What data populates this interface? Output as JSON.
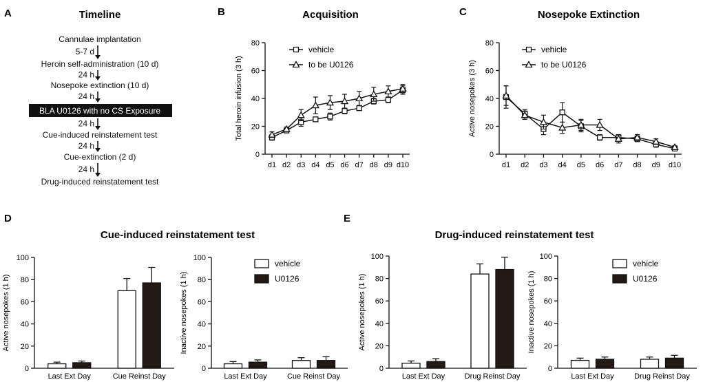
{
  "panel_labels": [
    "A",
    "B",
    "C",
    "D",
    "E"
  ],
  "timeline": {
    "title": "Timeline",
    "steps": [
      "Cannulae implantation",
      "Heroin self-administration (10 d)",
      "Nosepoke extinction (10 d)",
      "BLA U0126 with no CS Exposure",
      "Cue-induced reinstatement test",
      "Cue-extinction (2 d)",
      "Drug-induced reinstatement test"
    ],
    "intervals": [
      "5-7 d",
      "24 h",
      "24 h",
      "24 h",
      "24 h",
      "24 h"
    ],
    "highlight_step": 3
  },
  "section_titles": {
    "cue": "Cue-induced reinstatement test",
    "drug": "Drug-induced reinstatement test"
  },
  "colors": {
    "ink": "#111111",
    "vehicle_fill": "#ffffff",
    "u0126_fill": "#231a16"
  },
  "chart_data": [
    {
      "id": "B",
      "type": "line",
      "title": "Acquisition",
      "xlabel": "",
      "ylabel": "Total heroin infusion (3 h)",
      "categories": [
        "d1",
        "d2",
        "d3",
        "d4",
        "d5",
        "d6",
        "d7",
        "d8",
        "d9",
        "d10"
      ],
      "ylim": [
        0,
        80
      ],
      "yticks": [
        0,
        20,
        40,
        60,
        80
      ],
      "legend": "top-left",
      "series": [
        {
          "name": "vehicle",
          "marker": "square",
          "values": [
            12,
            17,
            23,
            25,
            27,
            31,
            33,
            38,
            39,
            46
          ],
          "errors": [
            2,
            1.5,
            3,
            1.5,
            2.5,
            2,
            1.5,
            2,
            2,
            3
          ]
        },
        {
          "name": "to be U0126",
          "marker": "triangle",
          "values": [
            14,
            18,
            28,
            35,
            37,
            38,
            40,
            43,
            45,
            47
          ],
          "errors": [
            2,
            1.5,
            4,
            6,
            5,
            5,
            5,
            5,
            4,
            3
          ]
        }
      ]
    },
    {
      "id": "C",
      "type": "line",
      "title": "Nosepoke Extinction",
      "xlabel": "",
      "ylabel": "Active nosepokes (3 h)",
      "categories": [
        "d1",
        "d2",
        "d3",
        "d4",
        "d5",
        "d6",
        "d7",
        "d8",
        "d9",
        "d10"
      ],
      "ylim": [
        0,
        80
      ],
      "yticks": [
        0,
        20,
        40,
        60,
        80
      ],
      "legend": "top-left",
      "series": [
        {
          "name": "vehicle",
          "marker": "square",
          "values": [
            41,
            29,
            18,
            30,
            20,
            12,
            12,
            11,
            7,
            4
          ],
          "errors": [
            8,
            3,
            4,
            7,
            4,
            2,
            2,
            2,
            2,
            1
          ]
        },
        {
          "name": "to be U0126",
          "marker": "triangle",
          "values": [
            42,
            28,
            23,
            19,
            21,
            21,
            11,
            12,
            9,
            5
          ],
          "errors": [
            7,
            3,
            5,
            4,
            4,
            4,
            3,
            2,
            2,
            1
          ]
        }
      ]
    },
    {
      "id": "D1",
      "type": "bar",
      "section": "Cue-induced reinstatement test",
      "xlabel": "",
      "ylabel": "Active nosepokes (1 h)",
      "categories": [
        "Last Ext Day",
        "Cue Reinst Day"
      ],
      "ylim": [
        0,
        100
      ],
      "yticks": [
        0,
        20,
        40,
        60,
        80,
        100
      ],
      "legend": "none",
      "series": [
        {
          "name": "vehicle",
          "values": [
            4,
            70
          ],
          "errors": [
            1.5,
            11
          ]
        },
        {
          "name": "U0126",
          "values": [
            5,
            77
          ],
          "errors": [
            1.5,
            14
          ]
        }
      ]
    },
    {
      "id": "D2",
      "type": "bar",
      "section": "Cue-induced reinstatement test",
      "xlabel": "",
      "ylabel": "Inactive nosepokes (1 h)",
      "categories": [
        "Last Ext Day",
        "Cue Reinst Day"
      ],
      "ylim": [
        0,
        100
      ],
      "yticks": [
        0,
        20,
        40,
        60,
        80,
        100
      ],
      "legend": "top-right",
      "series": [
        {
          "name": "vehicle",
          "values": [
            4,
            7
          ],
          "errors": [
            2,
            2.5
          ]
        },
        {
          "name": "U0126",
          "values": [
            5.5,
            7
          ],
          "errors": [
            2,
            3.5
          ]
        }
      ]
    },
    {
      "id": "E1",
      "type": "bar",
      "section": "Drug-induced reinstatement test",
      "xlabel": "",
      "ylabel": "Active nosepokes (1 h)",
      "categories": [
        "Last Ext Day",
        "Drug Reinst Day"
      ],
      "ylim": [
        0,
        100
      ],
      "yticks": [
        0,
        20,
        40,
        60,
        80,
        100
      ],
      "legend": "none",
      "series": [
        {
          "name": "vehicle",
          "values": [
            4.5,
            84
          ],
          "errors": [
            2,
            9
          ]
        },
        {
          "name": "U0126",
          "values": [
            6,
            88
          ],
          "errors": [
            2.5,
            11
          ]
        }
      ]
    },
    {
      "id": "E2",
      "type": "bar",
      "section": "Drug-induced reinstatement test",
      "xlabel": "",
      "ylabel": "Inactive nosepokes (1 h)",
      "categories": [
        "Last Ext Day",
        "Drug Reinst Day"
      ],
      "ylim": [
        0,
        100
      ],
      "yticks": [
        0,
        20,
        40,
        60,
        80,
        100
      ],
      "legend": "top-right",
      "series": [
        {
          "name": "vehicle",
          "values": [
            7,
            8
          ],
          "errors": [
            2,
            2
          ]
        },
        {
          "name": "U0126",
          "values": [
            8,
            9
          ],
          "errors": [
            2,
            2.5
          ]
        }
      ]
    }
  ]
}
